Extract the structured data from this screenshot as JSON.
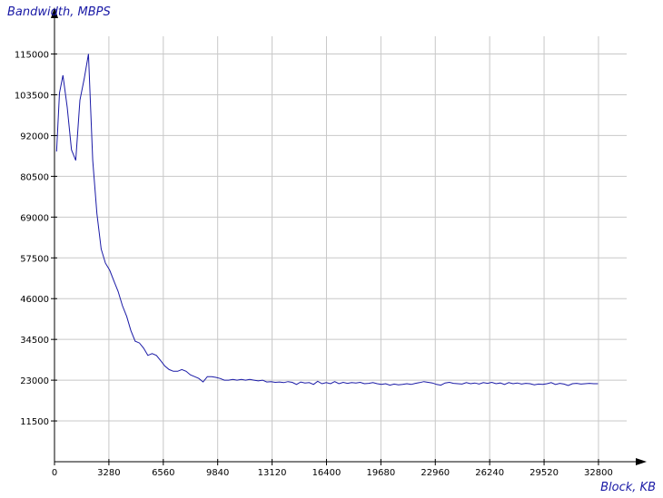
{
  "chart_data": {
    "type": "line",
    "title": "",
    "ylabel": "Bandwidth, MBPS",
    "xlabel": "Block, KB",
    "x_ticks": [
      0,
      3280,
      6560,
      9840,
      13120,
      16400,
      19680,
      22960,
      26240,
      29520,
      32800
    ],
    "y_ticks": [
      11500,
      23000,
      34500,
      46000,
      57500,
      69000,
      80500,
      92000,
      103500,
      115000
    ],
    "xlim": [
      0,
      34500
    ],
    "ylim": [
      0,
      120000
    ],
    "grid": true,
    "line_color": "#1a1aa6",
    "series": [
      {
        "values": [
          [
            128,
            87500
          ],
          [
            300,
            104000
          ],
          [
            512,
            109000
          ],
          [
            768,
            100000
          ],
          [
            1024,
            88000
          ],
          [
            1280,
            85000
          ],
          [
            1536,
            102000
          ],
          [
            1792,
            108000
          ],
          [
            2048,
            115000
          ],
          [
            2304,
            85000
          ],
          [
            2560,
            70000
          ],
          [
            2816,
            60000
          ],
          [
            3072,
            56000
          ],
          [
            3328,
            54000
          ],
          [
            3584,
            51000
          ],
          [
            3840,
            48000
          ],
          [
            4096,
            44000
          ],
          [
            4352,
            41000
          ],
          [
            4608,
            37000
          ],
          [
            4864,
            34000
          ],
          [
            5120,
            33500
          ],
          [
            5376,
            32000
          ],
          [
            5632,
            30000
          ],
          [
            5888,
            30500
          ],
          [
            6144,
            30000
          ],
          [
            6400,
            28500
          ],
          [
            6656,
            27000
          ],
          [
            6912,
            26000
          ],
          [
            7168,
            25500
          ],
          [
            7424,
            25500
          ],
          [
            7680,
            26000
          ],
          [
            7936,
            25500
          ],
          [
            8192,
            24500
          ],
          [
            8448,
            24000
          ],
          [
            8704,
            23500
          ],
          [
            8960,
            22500
          ],
          [
            9216,
            24000
          ],
          [
            9472,
            24000
          ],
          [
            9728,
            23800
          ],
          [
            9984,
            23500
          ],
          [
            10240,
            23000
          ],
          [
            10496,
            23000
          ],
          [
            10752,
            23200
          ],
          [
            11008,
            23000
          ],
          [
            11264,
            23200
          ],
          [
            11520,
            23000
          ],
          [
            11776,
            23200
          ],
          [
            12032,
            23000
          ],
          [
            12288,
            22800
          ],
          [
            12544,
            23000
          ],
          [
            12800,
            22500
          ],
          [
            13056,
            22600
          ],
          [
            13312,
            22400
          ],
          [
            13568,
            22500
          ],
          [
            13824,
            22300
          ],
          [
            14080,
            22600
          ],
          [
            14336,
            22400
          ],
          [
            14592,
            21800
          ],
          [
            14848,
            22500
          ],
          [
            15104,
            22200
          ],
          [
            15360,
            22300
          ],
          [
            15616,
            21800
          ],
          [
            15872,
            22700
          ],
          [
            16128,
            22000
          ],
          [
            16384,
            22300
          ],
          [
            16640,
            22000
          ],
          [
            16896,
            22600
          ],
          [
            17152,
            22000
          ],
          [
            17408,
            22400
          ],
          [
            17664,
            22100
          ],
          [
            17920,
            22300
          ],
          [
            18176,
            22200
          ],
          [
            18432,
            22400
          ],
          [
            18688,
            22000
          ],
          [
            18944,
            22100
          ],
          [
            19200,
            22300
          ],
          [
            19456,
            22000
          ],
          [
            19712,
            21800
          ],
          [
            19968,
            22000
          ],
          [
            20224,
            21600
          ],
          [
            20480,
            21900
          ],
          [
            20736,
            21700
          ],
          [
            20992,
            21800
          ],
          [
            21248,
            22000
          ],
          [
            21504,
            21800
          ],
          [
            21760,
            22100
          ],
          [
            22016,
            22300
          ],
          [
            22272,
            22600
          ],
          [
            22528,
            22400
          ],
          [
            22784,
            22200
          ],
          [
            23040,
            21800
          ],
          [
            23296,
            21600
          ],
          [
            23552,
            22200
          ],
          [
            23808,
            22400
          ],
          [
            24064,
            22100
          ],
          [
            24320,
            22000
          ],
          [
            24576,
            21900
          ],
          [
            24832,
            22300
          ],
          [
            25088,
            22000
          ],
          [
            25344,
            22200
          ],
          [
            25600,
            21900
          ],
          [
            25856,
            22300
          ],
          [
            26112,
            22100
          ],
          [
            26368,
            22400
          ],
          [
            26624,
            22000
          ],
          [
            26880,
            22200
          ],
          [
            27136,
            21800
          ],
          [
            27392,
            22300
          ],
          [
            27648,
            22000
          ],
          [
            27904,
            22200
          ],
          [
            28160,
            21900
          ],
          [
            28416,
            22100
          ],
          [
            28672,
            22000
          ],
          [
            28928,
            21700
          ],
          [
            29184,
            21900
          ],
          [
            29440,
            21800
          ],
          [
            29696,
            22000
          ],
          [
            29952,
            22300
          ],
          [
            30208,
            21800
          ],
          [
            30464,
            22100
          ],
          [
            30720,
            21900
          ],
          [
            30976,
            21500
          ],
          [
            31232,
            22000
          ],
          [
            31488,
            22100
          ],
          [
            31744,
            21900
          ],
          [
            32000,
            22000
          ],
          [
            32256,
            22100
          ],
          [
            32512,
            22000
          ],
          [
            32768,
            22000
          ]
        ]
      }
    ]
  }
}
